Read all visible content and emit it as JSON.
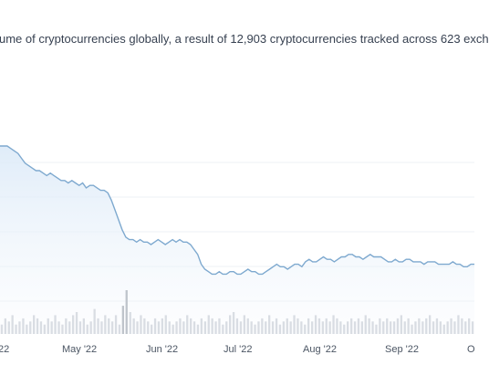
{
  "page": {
    "description": "ume of cryptocurrencies globally, a result of 12,903 cryptocurrencies tracked across 623 exch"
  },
  "colors": {
    "line": "#7ea9cf",
    "area_top": "#dceaf8",
    "grid": "#eef1f5",
    "volume_bar": "#d9dde3",
    "volume_bar_dark": "#bfc4cb"
  },
  "chart_data": {
    "type": "area",
    "title": "",
    "xlabel": "",
    "ylabel": "",
    "grid": true,
    "x_ticks": [
      "22",
      "May '22",
      "Jun '22",
      "Jul '22",
      "Aug '22",
      "Sep '22",
      "O"
    ],
    "series": [
      {
        "values": [
          100,
          100,
          100,
          99,
          98,
          97,
          95,
          93,
          92,
          91,
          90,
          90,
          89,
          88,
          89,
          88,
          87,
          86,
          86,
          85,
          86,
          85,
          84,
          85,
          83,
          84,
          84,
          83,
          82,
          82,
          81,
          78,
          74,
          70,
          66,
          63,
          62,
          62,
          61,
          62,
          61,
          61,
          60,
          61,
          62,
          61,
          60,
          61,
          62,
          61,
          62,
          61,
          61,
          60,
          58,
          56,
          52,
          50,
          49,
          48,
          48,
          49,
          48,
          48,
          49,
          49,
          48,
          48,
          49,
          50,
          49,
          49,
          48,
          48,
          49,
          50,
          51,
          52,
          51,
          51,
          50,
          51,
          52,
          52,
          51,
          53,
          54,
          53,
          53,
          54,
          55,
          54,
          54,
          53,
          54,
          55,
          55,
          56,
          56,
          55,
          55,
          54,
          55,
          56,
          55,
          55,
          55,
          54,
          53,
          53,
          54,
          53,
          53,
          54,
          54,
          53,
          53,
          53,
          52,
          53,
          53,
          53,
          52,
          52,
          52,
          52,
          53,
          52,
          52,
          51,
          51,
          52,
          52
        ]
      },
      {
        "name": "volume",
        "values": [
          3,
          5,
          4,
          6,
          3,
          4,
          5,
          3,
          4,
          6,
          5,
          4,
          3,
          5,
          4,
          6,
          4,
          3,
          5,
          4,
          6,
          7,
          4,
          5,
          3,
          4,
          8,
          5,
          4,
          6,
          5,
          4,
          6,
          3,
          9,
          14,
          7,
          5,
          4,
          6,
          5,
          4,
          3,
          5,
          4,
          5,
          6,
          4,
          3,
          4,
          5,
          4,
          6,
          5,
          4,
          3,
          5,
          4,
          6,
          5,
          4,
          5,
          3,
          4,
          6,
          7,
          5,
          4,
          6,
          5,
          4,
          3,
          4,
          5,
          4,
          6,
          4,
          5,
          3,
          4,
          5,
          4,
          6,
          5,
          4,
          3,
          5,
          4,
          6,
          5,
          4,
          5,
          4,
          6,
          5,
          4,
          3,
          4,
          5,
          4,
          5,
          4,
          6,
          5,
          4,
          3,
          5,
          4,
          5,
          4,
          4,
          5,
          6,
          4,
          5,
          3,
          4,
          5,
          4,
          5,
          6,
          4,
          5,
          4,
          3,
          4,
          5,
          4,
          6,
          5,
          4,
          5,
          4
        ]
      }
    ]
  }
}
